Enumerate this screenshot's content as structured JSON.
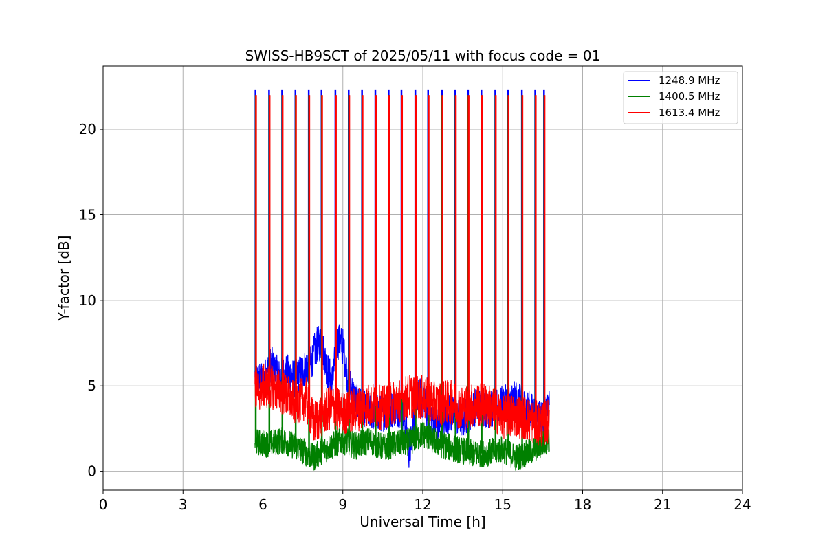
{
  "chart_data": {
    "type": "line",
    "title": "SWISS-HB9SCT of 2025/05/11 with focus code = 01",
    "xlabel": "Universal Time [h]",
    "ylabel": "Y-factor [dB]",
    "xlim": [
      0,
      24
    ],
    "ylim": [
      -1.1,
      23.7
    ],
    "xticks": [
      "0",
      "3",
      "6",
      "9",
      "12",
      "15",
      "18",
      "21",
      "24"
    ],
    "yticks": [
      "0",
      "5",
      "10",
      "15",
      "20"
    ],
    "grid": true,
    "legend_position": "top-right",
    "spike_times_h": [
      5.72,
      6.23,
      6.72,
      7.22,
      7.72,
      8.2,
      8.72,
      9.22,
      9.72,
      10.22,
      10.72,
      11.2,
      11.72,
      12.2,
      12.72,
      13.22,
      13.7,
      14.2,
      14.72,
      15.2,
      15.72,
      16.22,
      16.55
    ],
    "series": [
      {
        "name": "1248.9 MHz",
        "color": "#0000ff",
        "spike_peak_db": 22.3,
        "points": [
          [
            5.7,
            5.5
          ],
          [
            6.0,
            5.2
          ],
          [
            6.3,
            6.3
          ],
          [
            6.6,
            5.5
          ],
          [
            6.9,
            5.8
          ],
          [
            7.2,
            5.4
          ],
          [
            7.5,
            5.9
          ],
          [
            7.8,
            6.3
          ],
          [
            8.0,
            7.3
          ],
          [
            8.2,
            7.6
          ],
          [
            8.4,
            6.0
          ],
          [
            8.6,
            5.2
          ],
          [
            8.8,
            7.7
          ],
          [
            9.0,
            7.3
          ],
          [
            9.2,
            5.3
          ],
          [
            9.5,
            4.0
          ],
          [
            10.0,
            3.5
          ],
          [
            10.5,
            3.4
          ],
          [
            11.0,
            3.8
          ],
          [
            11.3,
            3.3
          ],
          [
            11.5,
            1.0
          ],
          [
            11.8,
            4.6
          ],
          [
            12.2,
            3.5
          ],
          [
            12.6,
            2.6
          ],
          [
            13.0,
            3.4
          ],
          [
            13.5,
            3.0
          ],
          [
            14.0,
            3.8
          ],
          [
            14.5,
            3.6
          ],
          [
            15.0,
            3.9
          ],
          [
            15.5,
            4.2
          ],
          [
            16.0,
            3.6
          ],
          [
            16.5,
            3.1
          ],
          [
            16.75,
            3.6
          ]
        ]
      },
      {
        "name": "1400.5 MHz",
        "color": "#008000",
        "spike_peak_db": 22.0,
        "points": [
          [
            5.7,
            1.7
          ],
          [
            6.2,
            1.6
          ],
          [
            6.7,
            1.8
          ],
          [
            7.2,
            1.5
          ],
          [
            7.6,
            1.1
          ],
          [
            7.9,
            0.8
          ],
          [
            8.2,
            1.2
          ],
          [
            8.6,
            1.5
          ],
          [
            9.0,
            1.8
          ],
          [
            9.5,
            1.5
          ],
          [
            10.0,
            1.8
          ],
          [
            10.5,
            1.4
          ],
          [
            11.0,
            1.6
          ],
          [
            11.5,
            1.7
          ],
          [
            12.0,
            2.2
          ],
          [
            12.5,
            1.7
          ],
          [
            13.0,
            1.4
          ],
          [
            13.5,
            1.2
          ],
          [
            14.0,
            1.0
          ],
          [
            14.5,
            1.1
          ],
          [
            15.0,
            1.3
          ],
          [
            15.5,
            0.8
          ],
          [
            16.0,
            1.1
          ],
          [
            16.5,
            1.6
          ],
          [
            16.75,
            1.9
          ]
        ]
      },
      {
        "name": "1613.4 MHz",
        "color": "#ff0000",
        "spike_peak_db": 22.0,
        "points": [
          [
            5.7,
            4.6
          ],
          [
            6.0,
            5.0
          ],
          [
            6.4,
            4.9
          ],
          [
            6.8,
            4.5
          ],
          [
            7.2,
            4.0
          ],
          [
            7.6,
            4.3
          ],
          [
            7.9,
            2.8
          ],
          [
            8.2,
            3.3
          ],
          [
            8.6,
            3.8
          ],
          [
            9.0,
            3.4
          ],
          [
            9.5,
            3.6
          ],
          [
            10.0,
            3.9
          ],
          [
            10.5,
            3.7
          ],
          [
            11.0,
            4.1
          ],
          [
            11.5,
            4.4
          ],
          [
            12.0,
            4.3
          ],
          [
            12.5,
            3.9
          ],
          [
            13.0,
            4.1
          ],
          [
            13.5,
            3.7
          ],
          [
            14.0,
            3.9
          ],
          [
            14.5,
            3.8
          ],
          [
            15.0,
            3.2
          ],
          [
            15.5,
            3.3
          ],
          [
            16.0,
            3.0
          ],
          [
            16.5,
            2.7
          ],
          [
            16.75,
            3.0
          ]
        ]
      }
    ]
  }
}
